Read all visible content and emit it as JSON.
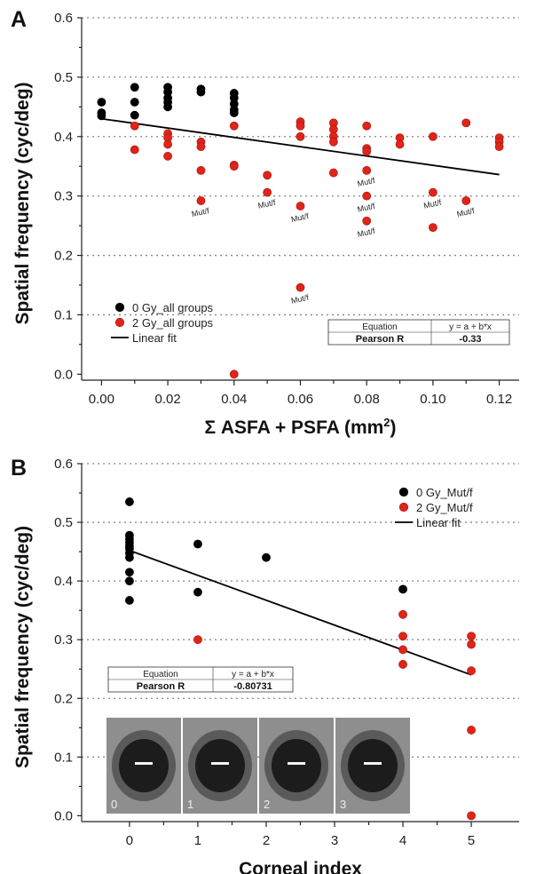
{
  "chart_data": [
    {
      "panel": "A",
      "type": "scatter",
      "xlabel": "Σ ASFA + PSFA (mm",
      "xlabel_sup": "2",
      "xlabel_end": ")",
      "ylabel": "Spatial frequency (cyc/deg)",
      "xlim": [
        -0.006,
        0.126
      ],
      "ylim": [
        -0.01,
        0.6
      ],
      "xticks": [
        0.0,
        0.02,
        0.04,
        0.06,
        0.08,
        0.1,
        0.12
      ],
      "xtick_labels": [
        "0.00",
        "0.02",
        "0.04",
        "0.06",
        "0.08",
        "0.10",
        "0.12"
      ],
      "yticks": [
        0.0,
        0.1,
        0.2,
        0.3,
        0.4,
        0.5,
        0.6
      ],
      "ytick_labels": [
        "0.0",
        "0.1",
        "0.2",
        "0.3",
        "0.4",
        "0.5",
        "0.6"
      ],
      "grid": "horizontal dotted",
      "series": [
        {
          "name": "0 Gy_all groups",
          "color": "#000000",
          "points": [
            [
              0.0,
              0.458
            ],
            [
              0.0,
              0.44
            ],
            [
              0.0,
              0.435
            ],
            [
              0.01,
              0.483
            ],
            [
              0.01,
              0.458
            ],
            [
              0.01,
              0.436
            ],
            [
              0.02,
              0.483
            ],
            [
              0.02,
              0.475
            ],
            [
              0.02,
              0.465
            ],
            [
              0.02,
              0.458
            ],
            [
              0.02,
              0.45
            ],
            [
              0.03,
              0.48
            ],
            [
              0.03,
              0.475
            ],
            [
              0.04,
              0.473
            ],
            [
              0.04,
              0.465
            ],
            [
              0.04,
              0.455
            ],
            [
              0.04,
              0.445
            ],
            [
              0.04,
              0.44
            ]
          ]
        },
        {
          "name": "2 Gy_all groups",
          "color": "#e2231a",
          "points": [
            [
              0.01,
              0.418
            ],
            [
              0.01,
              0.378
            ],
            [
              0.02,
              0.405
            ],
            [
              0.02,
              0.398
            ],
            [
              0.02,
              0.387
            ],
            [
              0.02,
              0.367
            ],
            [
              0.03,
              0.391
            ],
            [
              0.03,
              0.383
            ],
            [
              0.03,
              0.343
            ],
            [
              0.03,
              0.292
            ],
            [
              0.04,
              0.418
            ],
            [
              0.04,
              0.352
            ],
            [
              0.04,
              0.35
            ],
            [
              0.04,
              0.0
            ],
            [
              0.05,
              0.335
            ],
            [
              0.05,
              0.306
            ],
            [
              0.06,
              0.425
            ],
            [
              0.06,
              0.418
            ],
            [
              0.06,
              0.4
            ],
            [
              0.06,
              0.283
            ],
            [
              0.06,
              0.146
            ],
            [
              0.07,
              0.423
            ],
            [
              0.07,
              0.412
            ],
            [
              0.07,
              0.4
            ],
            [
              0.07,
              0.391
            ],
            [
              0.07,
              0.339
            ],
            [
              0.08,
              0.418
            ],
            [
              0.08,
              0.38
            ],
            [
              0.08,
              0.375
            ],
            [
              0.08,
              0.343
            ],
            [
              0.08,
              0.3
            ],
            [
              0.08,
              0.258
            ],
            [
              0.09,
              0.398
            ],
            [
              0.09,
              0.387
            ],
            [
              0.1,
              0.4
            ],
            [
              0.1,
              0.306
            ],
            [
              0.1,
              0.247
            ],
            [
              0.11,
              0.423
            ],
            [
              0.11,
              0.292
            ],
            [
              0.12,
              0.398
            ],
            [
              0.12,
              0.391
            ],
            [
              0.12,
              0.383
            ]
          ]
        }
      ],
      "fit": {
        "name": "Linear fit",
        "x1": 0.0,
        "y1": 0.43,
        "x2": 0.12,
        "y2": 0.336,
        "color": "#000000"
      },
      "annotations": [
        {
          "text": "Mut/f",
          "x": 0.03,
          "y": 0.292
        },
        {
          "text": "Mut/f",
          "x": 0.05,
          "y": 0.306
        },
        {
          "text": "Mut/f",
          "x": 0.06,
          "y": 0.283
        },
        {
          "text": "Mut/f",
          "x": 0.08,
          "y": 0.343
        },
        {
          "text": "Mut/f",
          "x": 0.08,
          "y": 0.3
        },
        {
          "text": "Mut/f",
          "x": 0.08,
          "y": 0.258
        },
        {
          "text": "Mut/f",
          "x": 0.1,
          "y": 0.306
        },
        {
          "text": "Mut/f",
          "x": 0.11,
          "y": 0.292
        },
        {
          "text": "Mut/f",
          "x": 0.06,
          "y": 0.146
        }
      ],
      "legend_placement": "lower-left",
      "stats": {
        "equation_label": "Equation",
        "equation_value": "y = a + b*x",
        "r_label": "Pearson R",
        "r_value": "-0.33"
      }
    },
    {
      "panel": "B",
      "type": "scatter",
      "xlabel": "Corneal index",
      "ylabel": "Spatial frequency (cyc/deg)",
      "xlim": [
        -0.7,
        5.7
      ],
      "ylim": [
        -0.01,
        0.6
      ],
      "xticks": [
        0,
        1,
        2,
        3,
        4,
        5
      ],
      "xtick_labels": [
        "0",
        "1",
        "2",
        "3",
        "4",
        "5"
      ],
      "yticks": [
        0.0,
        0.1,
        0.2,
        0.3,
        0.4,
        0.5,
        0.6
      ],
      "ytick_labels": [
        "0.0",
        "0.1",
        "0.2",
        "0.3",
        "0.4",
        "0.5",
        "0.6"
      ],
      "grid": "horizontal dotted",
      "series": [
        {
          "name": "0 Gy_Mut/f",
          "color": "#000000",
          "points": [
            [
              0,
              0.535
            ],
            [
              0,
              0.478
            ],
            [
              0,
              0.472
            ],
            [
              0,
              0.466
            ],
            [
              0,
              0.46
            ],
            [
              0,
              0.455
            ],
            [
              0,
              0.448
            ],
            [
              0,
              0.44
            ],
            [
              0,
              0.415
            ],
            [
              0,
              0.4
            ],
            [
              0,
              0.367
            ],
            [
              1,
              0.463
            ],
            [
              1,
              0.381
            ],
            [
              2,
              0.44
            ],
            [
              4,
              0.386
            ]
          ]
        },
        {
          "name": "2 Gy_Mut/f",
          "color": "#e2231a",
          "points": [
            [
              1,
              0.3
            ],
            [
              4,
              0.343
            ],
            [
              4,
              0.306
            ],
            [
              4,
              0.283
            ],
            [
              4,
              0.258
            ],
            [
              5,
              0.306
            ],
            [
              5,
              0.292
            ],
            [
              5,
              0.247
            ],
            [
              5,
              0.146
            ],
            [
              5,
              0.0
            ]
          ]
        }
      ],
      "fit": {
        "name": "Linear fit",
        "x1": 0,
        "y1": 0.452,
        "x2": 5,
        "y2": 0.24,
        "color": "#000000"
      },
      "legend_placement": "top-right",
      "stats": {
        "equation_label": "Equation",
        "equation_value": "y = a + b*x",
        "r_label": "Pearson R",
        "r_value": "-0.80731"
      },
      "inset_images": [
        {
          "label": "0"
        },
        {
          "label": "1"
        },
        {
          "label": "2"
        },
        {
          "label": "3"
        }
      ]
    }
  ]
}
